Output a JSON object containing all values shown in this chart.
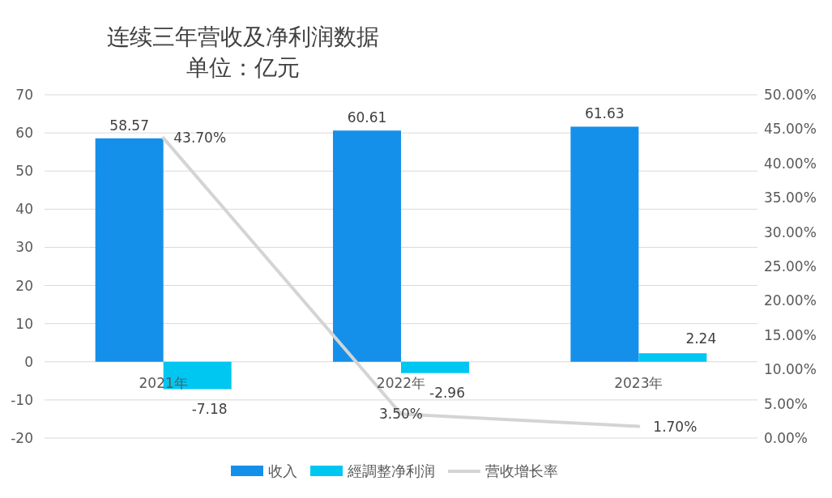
{
  "chart_data": {
    "type": "bar",
    "title": "连续三年营收及净利润数据",
    "subtitle": "单位：亿元",
    "categories": [
      "2021年",
      "2022年",
      "2023年"
    ],
    "series": [
      {
        "name": "收入",
        "color": "#1590ea",
        "values": [
          58.57,
          60.61,
          61.63
        ],
        "value_labels": [
          "58.57",
          "60.61",
          "61.63"
        ]
      },
      {
        "name": "經調整净利润",
        "color": "#00c6f2",
        "values": [
          -7.18,
          -2.96,
          2.24
        ],
        "value_labels": [
          "-7.18",
          "-2.96",
          "2.24"
        ]
      },
      {
        "name": "营收增长率",
        "type": "line",
        "axis": "y2",
        "color": "#d4d4d4",
        "values": [
          43.7,
          3.5,
          1.7
        ],
        "value_labels": [
          "43.70%",
          "3.50%",
          "1.70%"
        ]
      }
    ],
    "ylim": [
      -20,
      70
    ],
    "yticks": [
      -20,
      -10,
      0,
      10,
      20,
      30,
      40,
      50,
      60,
      70
    ],
    "y2lim": [
      0,
      50
    ],
    "y2ticks": [
      {
        "value": 0,
        "label": "0.00%"
      },
      {
        "value": 5,
        "label": "5.00%"
      },
      {
        "value": 10,
        "label": "10.00%"
      },
      {
        "value": 15,
        "label": "15.00%"
      },
      {
        "value": 20,
        "label": "20.00%"
      },
      {
        "value": 25,
        "label": "25.00%"
      },
      {
        "value": 30,
        "label": "30.00%"
      },
      {
        "value": 35,
        "label": "35.00%"
      },
      {
        "value": 40,
        "label": "40.00%"
      },
      {
        "value": 45,
        "label": "45.00%"
      },
      {
        "value": 50,
        "label": "50.00%"
      }
    ],
    "grid": "y",
    "legend": "bottom"
  }
}
